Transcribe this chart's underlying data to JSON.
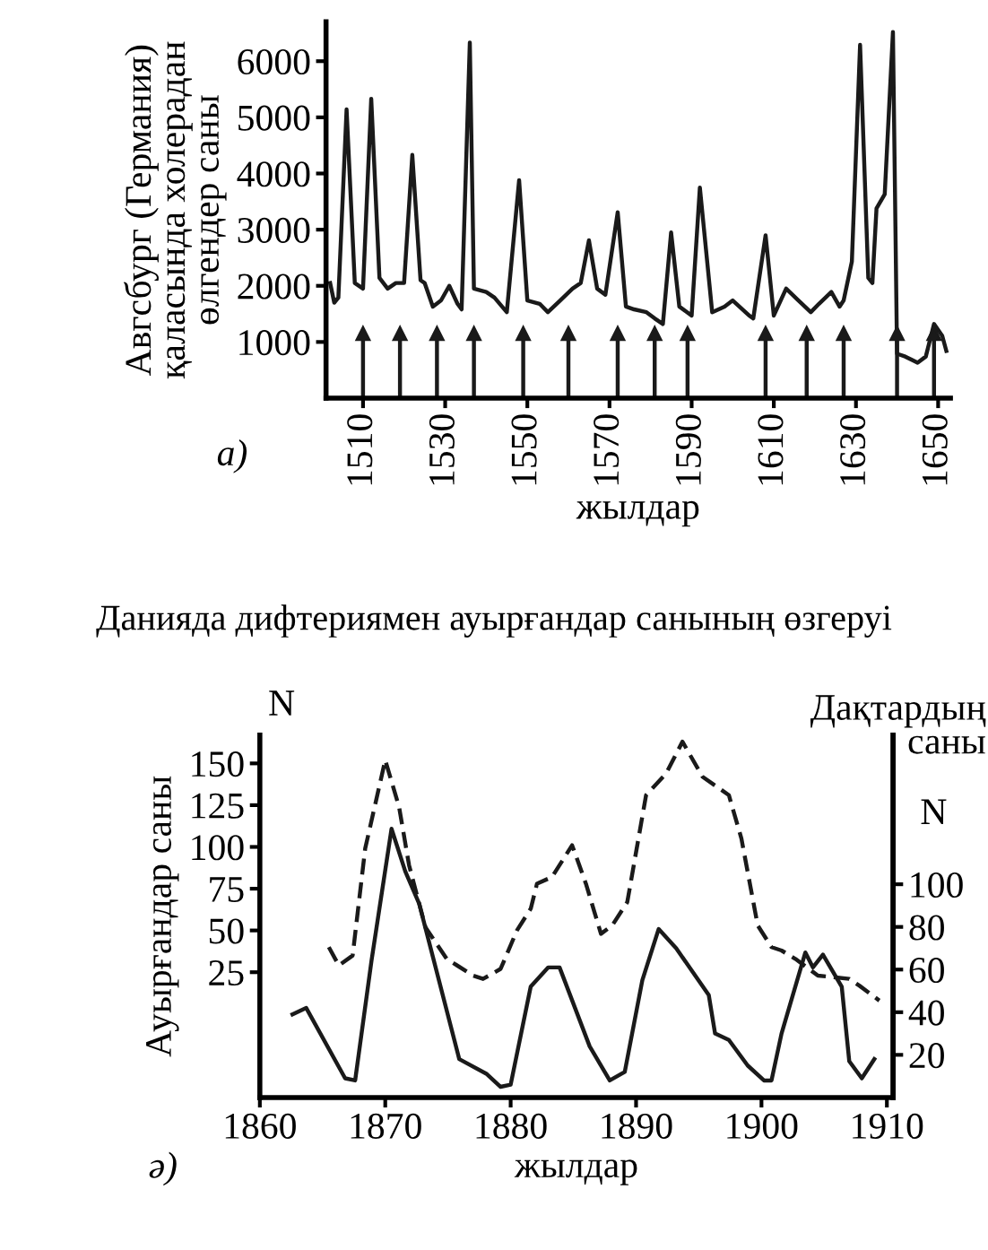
{
  "chart_data": [
    {
      "type": "line",
      "ylabel": "Авгсбург (Германия)\nқаласында холерадан\nөлгендер саны",
      "xlabel": "жылдар",
      "annotations": [
        "а)"
      ],
      "xlim": [
        1501,
        1653
      ],
      "xticks": [
        1510,
        1530,
        1550,
        1570,
        1590,
        1610,
        1630,
        1650
      ],
      "ylim": [
        0,
        6700
      ],
      "yticks": [
        1000,
        2000,
        3000,
        4000,
        5000,
        6000
      ],
      "grid": false,
      "legend": false,
      "series": [
        {
          "color": "#1a1a1a",
          "line_style": "solid",
          "marker": "none",
          "x": [
            1502,
            1503,
            1504,
            1506,
            1508,
            1510,
            1512,
            1514,
            1516,
            1518,
            1520,
            1522,
            1524,
            1525,
            1527,
            1529,
            1531,
            1533,
            1534,
            1536,
            1537,
            1540,
            1542,
            1545,
            1548,
            1550,
            1553,
            1555,
            1558,
            1561,
            1563,
            1565,
            1567,
            1569,
            1572,
            1574,
            1576,
            1579,
            1581,
            1583,
            1585,
            1587,
            1590,
            1592,
            1595,
            1598,
            1600,
            1604,
            1605,
            1608,
            1610,
            1613,
            1616,
            1619,
            1621,
            1624,
            1626,
            1627,
            1629,
            1631,
            1633,
            1634,
            1635,
            1637,
            1639,
            1640,
            1642,
            1645,
            1647,
            1649,
            1651,
            1652
          ],
          "values": [
            2050,
            1700,
            1790,
            5140,
            2050,
            1950,
            5330,
            2140,
            1950,
            2050,
            2050,
            4330,
            2100,
            2050,
            1630,
            1740,
            2000,
            1680,
            1580,
            6330,
            1950,
            1890,
            1790,
            1530,
            3880,
            1740,
            1680,
            1530,
            1740,
            1950,
            2050,
            2810,
            1950,
            1840,
            3310,
            1630,
            1580,
            1530,
            1420,
            1320,
            2950,
            1630,
            1470,
            3750,
            1530,
            1630,
            1740,
            1470,
            1420,
            2900,
            1470,
            1950,
            1740,
            1530,
            1680,
            1890,
            1630,
            1740,
            2430,
            6290,
            2140,
            2050,
            3380,
            3630,
            6520,
            790,
            740,
            630,
            740,
            1320,
            1110,
            840
          ]
        },
        {
          "type": "lollipop",
          "color": "#1a1a1a",
          "marker": "triangle",
          "x": [
            1510,
            1519,
            1528,
            1537,
            1549,
            1560,
            1572,
            1581,
            1589,
            1608,
            1618,
            1627,
            1640,
            1649
          ],
          "values": [
            1150,
            1150,
            1150,
            1150,
            1150,
            1150,
            1150,
            1150,
            1150,
            1150,
            1150,
            1150,
            1150,
            1150
          ]
        }
      ]
    },
    {
      "type": "line",
      "title": "Данияда дифтериямен ауырғандар санының өзгеруі",
      "ylabel": "Ауырғандар саны",
      "y2label": "Дақтардың\nсаны",
      "xlabel": "жылдар",
      "annotations": [
        "N",
        "N",
        "ә)"
      ],
      "xlim": [
        1860,
        1910.5
      ],
      "xticks": [
        1860,
        1870,
        1880,
        1890,
        1900,
        1910
      ],
      "ylim": [
        -50,
        167
      ],
      "yticks": [
        25,
        50,
        75,
        100,
        125,
        150
      ],
      "y2lim": [
        0,
        170
      ],
      "y2ticks": [
        20,
        40,
        60,
        80,
        100
      ],
      "grid": false,
      "legend": false,
      "series": [
        {
          "color": "#1a1a1a",
          "line_style": "dashed",
          "marker": "none",
          "x": [
            1865.5,
            1866.3,
            1867.4,
            1868.4,
            1870,
            1871.1,
            1871.9,
            1873.2,
            1874.9,
            1877.0,
            1877.8,
            1879.2,
            1880.5,
            1881.6,
            1882.1,
            1883.3,
            1884.9,
            1886.0,
            1887.2,
            1888.1,
            1889.3,
            1890.8,
            1892.4,
            1893.7,
            1895.3,
            1897.4,
            1898.4,
            1899.7,
            1900.8,
            1901.6,
            1902.7,
            1904.5,
            1907.0,
            1907.8,
            1909.4
          ],
          "values": [
            40,
            29,
            35,
            99,
            152,
            124,
            89,
            52,
            33,
            23,
            21,
            27,
            50,
            63,
            78,
            82,
            101,
            78,
            48,
            53,
            67,
            131,
            144,
            163,
            142,
            131,
            105,
            53,
            40,
            38,
            33,
            23,
            21,
            17,
            8
          ]
        },
        {
          "axis": "y2",
          "color": "#1a1a1a",
          "line_style": "solid",
          "marker": "none",
          "x": [
            1862.6,
            1863.7,
            1866.8,
            1867.6,
            1868.9,
            1870.5,
            1871.6,
            1872.7,
            1875.9,
            1878.1,
            1879.2,
            1880,
            1881.6,
            1883.0,
            1883.9,
            1886.3,
            1887.9,
            1889.1,
            1890.5,
            1891.8,
            1893.2,
            1895.8,
            1896.3,
            1897.4,
            1898.9,
            1900.2,
            1900.8,
            1901.6,
            1903.5,
            1904.1,
            1904.9,
            1906.4,
            1907.0,
            1908.0,
            1909.0
          ],
          "values": [
            39,
            42,
            9,
            8,
            64,
            126,
            106,
            91,
            18,
            11,
            5,
            6,
            52,
            61,
            61,
            24,
            8,
            12,
            55,
            79,
            70,
            48,
            30,
            27,
            15,
            8,
            8,
            30,
            68,
            61,
            67,
            52,
            17,
            9,
            18
          ]
        }
      ]
    }
  ]
}
